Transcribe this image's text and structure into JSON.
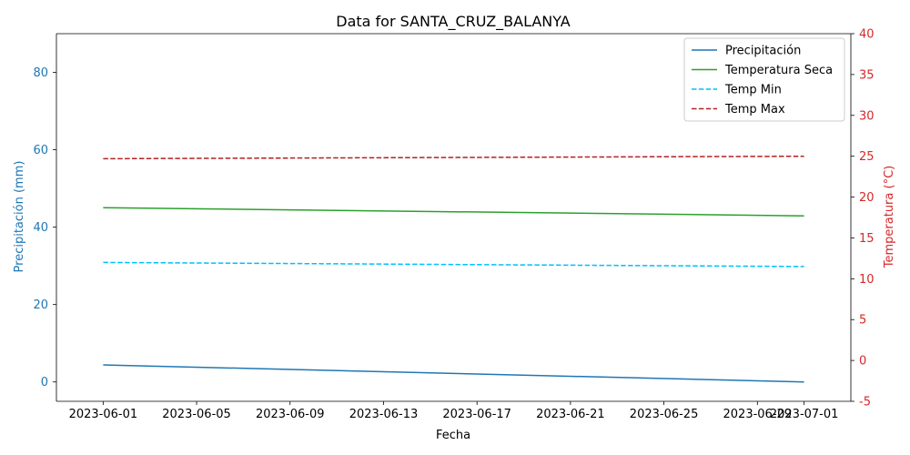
{
  "chart_data": {
    "type": "line",
    "title": "Data for SANTA_CRUZ_BALANYA",
    "xlabel": "Fecha",
    "ylabel_left": "Precipitación (mm)",
    "ylabel_right": "Temperatura (°C)",
    "x_ticks": [
      "2023-06-01",
      "2023-06-05",
      "2023-06-09",
      "2023-06-13",
      "2023-06-17",
      "2023-06-21",
      "2023-06-25",
      "2023-06-29",
      "2023-07-01"
    ],
    "x_range": [
      "2023-05-30",
      "2023-07-03"
    ],
    "ylim_left": [
      -5,
      90
    ],
    "yticks_left": [
      0,
      20,
      40,
      60,
      80
    ],
    "ylim_right": [
      -5,
      40
    ],
    "yticks_right": [
      -5,
      0,
      5,
      10,
      15,
      20,
      25,
      30,
      35,
      40
    ],
    "legend_position": "top-right",
    "grid": false,
    "colors": {
      "left_axis": "#1f77b4",
      "right_axis": "#d62728"
    },
    "series": [
      {
        "name": "Precipitación",
        "axis": "left",
        "style": "solid",
        "color": "#1f77b4",
        "x": [
          "2023-06-01",
          "2023-07-01"
        ],
        "values": [
          4.4,
          0.0
        ]
      },
      {
        "name": "Temperatura Seca",
        "axis": "right",
        "style": "solid",
        "color": "#2ca02c",
        "x": [
          "2023-06-01",
          "2023-07-01"
        ],
        "values": [
          18.7,
          17.7
        ]
      },
      {
        "name": "Temp Min",
        "axis": "right",
        "style": "dashed",
        "color": "#00bfff",
        "x": [
          "2023-06-01",
          "2023-07-01"
        ],
        "values": [
          12.0,
          11.5
        ]
      },
      {
        "name": "Temp Max",
        "axis": "right",
        "style": "dashed",
        "color": "#b22222",
        "x": [
          "2023-06-01",
          "2023-07-01"
        ],
        "values": [
          24.7,
          25.0
        ]
      }
    ]
  }
}
